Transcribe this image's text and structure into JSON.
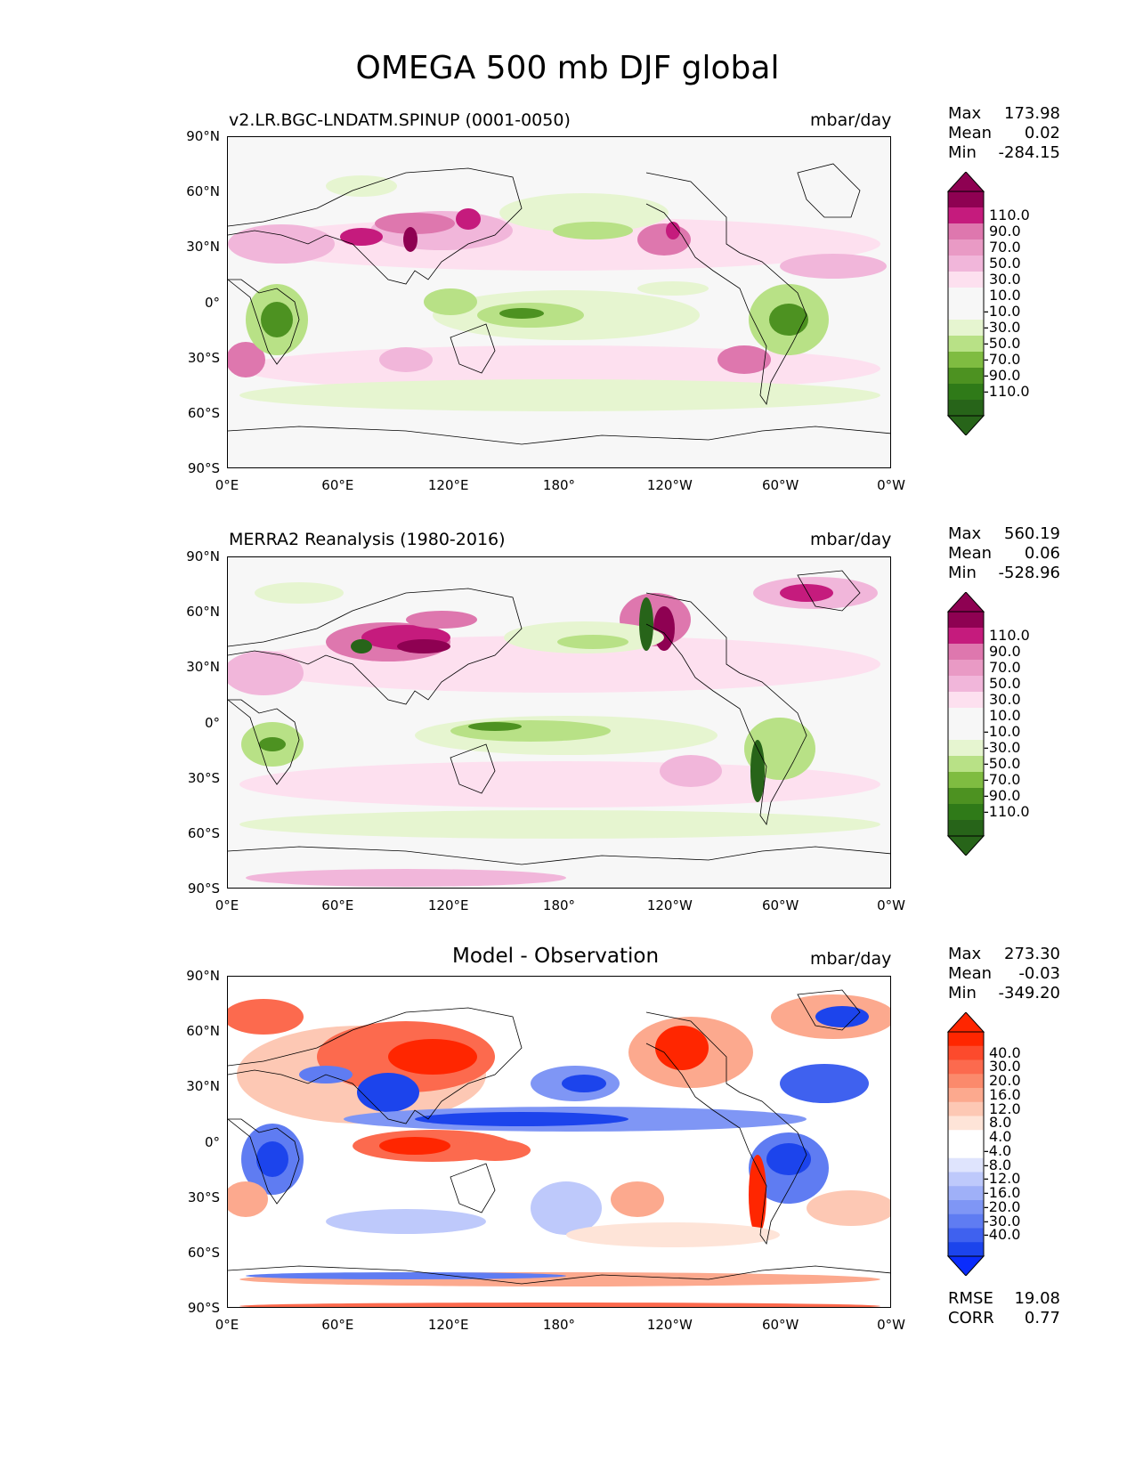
{
  "title": "OMEGA 500 mb DJF global",
  "lat_ticks": [
    "90°N",
    "60°N",
    "30°N",
    "0°",
    "30°S",
    "60°S",
    "90°S"
  ],
  "lon_ticks": [
    "0°E",
    "60°E",
    "120°E",
    "180°",
    "120°W",
    "60°W",
    "0°W"
  ],
  "panels": [
    {
      "left_title": "v2.LR.BGC-LNDATM.SPINUP (0001-0050)",
      "center_title": "",
      "units": "mbar/day",
      "stats": [
        {
          "k": "Max",
          "v": "173.98"
        },
        {
          "k": "Mean",
          "v": "0.02"
        },
        {
          "k": "Min",
          "v": "-284.15"
        }
      ],
      "colorbar": {
        "labels": [
          "110.0",
          "90.0",
          "70.0",
          "50.0",
          "30.0",
          "10.0",
          "-10.0",
          "-30.0",
          "-50.0",
          "-70.0",
          "-90.0",
          "-110.0"
        ],
        "colors": [
          "#8e0152",
          "#c51b7d",
          "#de77ae",
          "#e99ac5",
          "#f1b6da",
          "#fde0ef",
          "#f7f7f7",
          "#f7f7f7",
          "#e6f5d0",
          "#b8e186",
          "#7fbc41",
          "#4d9221",
          "#2f7a18",
          "#276419"
        ],
        "top": "#8e0152",
        "bottom": "#276419"
      },
      "scores": []
    },
    {
      "left_title": "MERRA2 Reanalysis (1980-2016)",
      "center_title": "",
      "units": "mbar/day",
      "stats": [
        {
          "k": "Max",
          "v": "560.19"
        },
        {
          "k": "Mean",
          "v": "0.06"
        },
        {
          "k": "Min",
          "v": "-528.96"
        }
      ],
      "colorbar": {
        "labels": [
          "110.0",
          "90.0",
          "70.0",
          "50.0",
          "30.0",
          "10.0",
          "-10.0",
          "-30.0",
          "-50.0",
          "-70.0",
          "-90.0",
          "-110.0"
        ],
        "colors": [
          "#8e0152",
          "#c51b7d",
          "#de77ae",
          "#e99ac5",
          "#f1b6da",
          "#fde0ef",
          "#f7f7f7",
          "#f7f7f7",
          "#e6f5d0",
          "#b8e186",
          "#7fbc41",
          "#4d9221",
          "#2f7a18",
          "#276419"
        ],
        "top": "#8e0152",
        "bottom": "#276419"
      },
      "scores": []
    },
    {
      "left_title": "",
      "center_title": "Model - Observation",
      "units": "mbar/day",
      "stats": [
        {
          "k": "Max",
          "v": "273.30"
        },
        {
          "k": "Mean",
          "v": "-0.03"
        },
        {
          "k": "Min",
          "v": "-349.20"
        }
      ],
      "colorbar": {
        "labels": [
          "40.0",
          "30.0",
          "20.0",
          "16.0",
          "12.0",
          "8.0",
          "4.0",
          "-4.0",
          "-8.0",
          "-12.0",
          "-16.0",
          "-20.0",
          "-30.0",
          "-40.0"
        ],
        "colors": [
          "#ff2600",
          "#fd4a2c",
          "#fc6a4e",
          "#fb8a6c",
          "#fca98e",
          "#fdc8b4",
          "#fee4d8",
          "#ffffff",
          "#ffffff",
          "#dfe4fd",
          "#bec9fb",
          "#9fb0f8",
          "#7f96f5",
          "#5f7cf2",
          "#3f61ef",
          "#1c44ec"
        ],
        "top": "#ff2600",
        "bottom": "#0a2cfc"
      },
      "scores": [
        {
          "k": "RMSE",
          "v": "19.08"
        },
        {
          "k": "CORR",
          "v": "0.77"
        }
      ]
    }
  ]
}
